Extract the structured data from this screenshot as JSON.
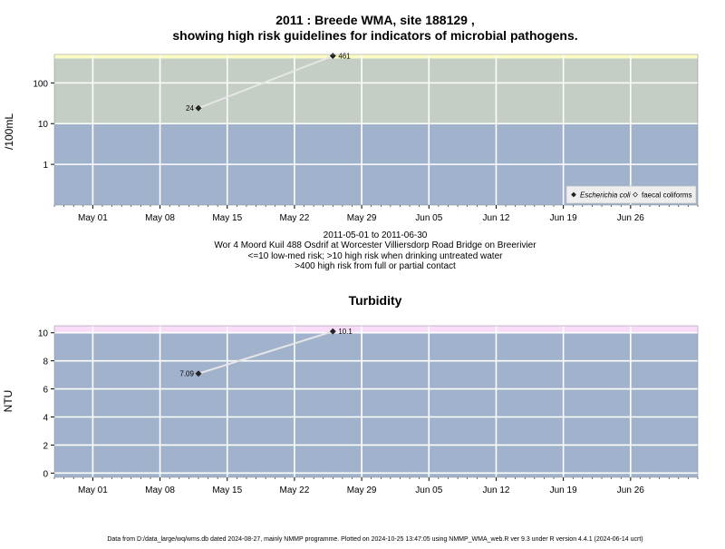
{
  "chart_data": [
    {
      "type": "line",
      "title_line1": "2011 : Breede WMA, site 188129 ,",
      "title_line2": "showing high risk guidelines for indicators of microbial pathogens.",
      "ylabel": "/100mL",
      "yscale": "log",
      "ylim": [
        0.1,
        500
      ],
      "yticks": [
        1,
        10,
        100
      ],
      "ytick_labels": [
        "1",
        "10",
        "100"
      ],
      "x_range": [
        "2011-04-27",
        "2011-07-03"
      ],
      "xticks": [
        "2011-05-01",
        "2011-05-08",
        "2011-05-15",
        "2011-05-22",
        "2011-05-29",
        "2011-06-05",
        "2011-06-12",
        "2011-06-19",
        "2011-06-26"
      ],
      "xtick_labels": [
        "May 01",
        "May 08",
        "May 15",
        "May 22",
        "May 29",
        "Jun 05",
        "Jun 12",
        "Jun 19",
        "Jun 26"
      ],
      "bands": [
        {
          "from": 0.1,
          "to": 10,
          "color": "#a0b2cc",
          "meaning": "<=10 low-med risk"
        },
        {
          "from": 10,
          "to": 400,
          "color": "#c4cec4",
          "meaning": ">10 high risk when drinking untreated water"
        },
        {
          "from": 400,
          "to": 500,
          "color": "#fcfcc4",
          "meaning": ">400 high risk from full or partial contact"
        }
      ],
      "series": [
        {
          "name": "Escherichia coli",
          "marker": "diamond-filled",
          "x": [
            "2011-05-12",
            "2011-05-26"
          ],
          "values": [
            24,
            461
          ],
          "labels": [
            "24",
            "461"
          ]
        }
      ],
      "legend": {
        "position": "bottom-right",
        "entries": [
          "Escherichia coli",
          "faecal coliforms"
        ],
        "markers": [
          "diamond-filled",
          "diamond-open"
        ]
      },
      "grid": true,
      "subtitle_lines": [
        "2011-05-01 to 2011-06-30",
        "Wor 4 Moord Kuil 488 Osdrif at Worcester Villiersdorp Road Bridge on Breerivier",
        "<=10 low-med risk; >10 high risk when drinking untreated water",
        ">400 high risk from full or partial contact"
      ]
    },
    {
      "type": "line",
      "title": "Turbidity",
      "ylabel": "NTU",
      "ylim": [
        -0.3,
        10.5
      ],
      "yticks": [
        0,
        2,
        4,
        6,
        8,
        10
      ],
      "ytick_labels": [
        "0",
        "2",
        "4",
        "6",
        "8",
        "10"
      ],
      "x_range": [
        "2011-04-27",
        "2011-07-03"
      ],
      "xticks": [
        "2011-05-01",
        "2011-05-08",
        "2011-05-15",
        "2011-05-22",
        "2011-05-29",
        "2011-06-05",
        "2011-06-12",
        "2011-06-19",
        "2011-06-26"
      ],
      "xtick_labels": [
        "May 01",
        "May 08",
        "May 15",
        "May 22",
        "May 29",
        "Jun 05",
        "Jun 12",
        "Jun 19",
        "Jun 26"
      ],
      "bands": [
        {
          "from": -0.3,
          "to": 10,
          "color": "#a0b2cc"
        },
        {
          "from": 10,
          "to": 10.5,
          "color": "#f8dcf8"
        }
      ],
      "series": [
        {
          "x": [
            "2011-05-12",
            "2011-05-26"
          ],
          "values": [
            7.09,
            10.1
          ],
          "labels": [
            "7.09",
            "10.1"
          ]
        }
      ],
      "grid": true
    }
  ],
  "footer": "Data from D:/data_large/wq/wms.db dated 2024-08-27, mainly NMMP programme. Plotted on 2024-10-25 13:47:05 using NMMP_WMA_web.R ver 9.3 under R version 4.4.1 (2024-06-14 ucrt)"
}
